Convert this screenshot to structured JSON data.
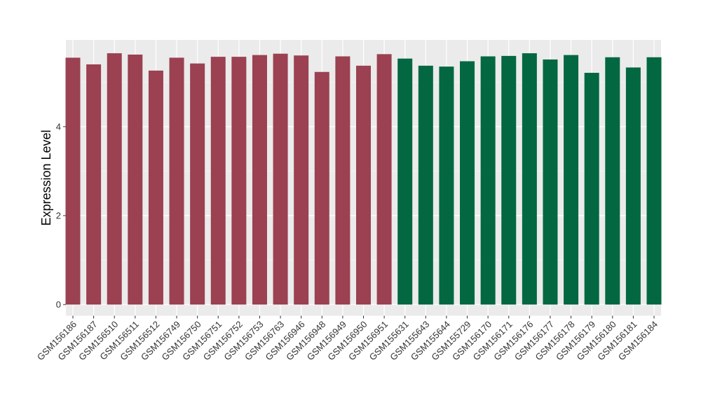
{
  "chart_data": {
    "type": "bar",
    "ylabel": "Expression Level",
    "xlabel": "",
    "ylim": [
      -0.25,
      5.95
    ],
    "yticks": [
      0,
      2,
      4
    ],
    "grid": true,
    "legend": "none",
    "panel_background": "#ebebeb",
    "categories": [
      "GSM156186",
      "GSM156187",
      "GSM156510",
      "GSM156511",
      "GSM156512",
      "GSM156749",
      "GSM156750",
      "GSM156751",
      "GSM156752",
      "GSM156753",
      "GSM156763",
      "GSM156946",
      "GSM156948",
      "GSM156949",
      "GSM156950",
      "GSM156951",
      "GSM155631",
      "GSM155643",
      "GSM155644",
      "GSM155729",
      "GSM156170",
      "GSM156171",
      "GSM156176",
      "GSM156177",
      "GSM156178",
      "GSM156179",
      "GSM156180",
      "GSM156181",
      "GSM156184"
    ],
    "values": [
      5.55,
      5.4,
      5.65,
      5.62,
      5.26,
      5.55,
      5.42,
      5.57,
      5.57,
      5.61,
      5.64,
      5.6,
      5.23,
      5.58,
      5.37,
      5.63,
      5.53,
      5.37,
      5.35,
      5.47,
      5.58,
      5.59,
      5.65,
      5.51,
      5.61,
      5.21,
      5.56,
      5.33,
      5.56
    ],
    "colors": [
      "#9b4151",
      "#9b4151",
      "#9b4151",
      "#9b4151",
      "#9b4151",
      "#9b4151",
      "#9b4151",
      "#9b4151",
      "#9b4151",
      "#9b4151",
      "#9b4151",
      "#9b4151",
      "#9b4151",
      "#9b4151",
      "#9b4151",
      "#9b4151",
      "#036841",
      "#036841",
      "#036841",
      "#036841",
      "#036841",
      "#036841",
      "#036841",
      "#036841",
      "#036841",
      "#036841",
      "#036841",
      "#036841",
      "#036841"
    ]
  }
}
